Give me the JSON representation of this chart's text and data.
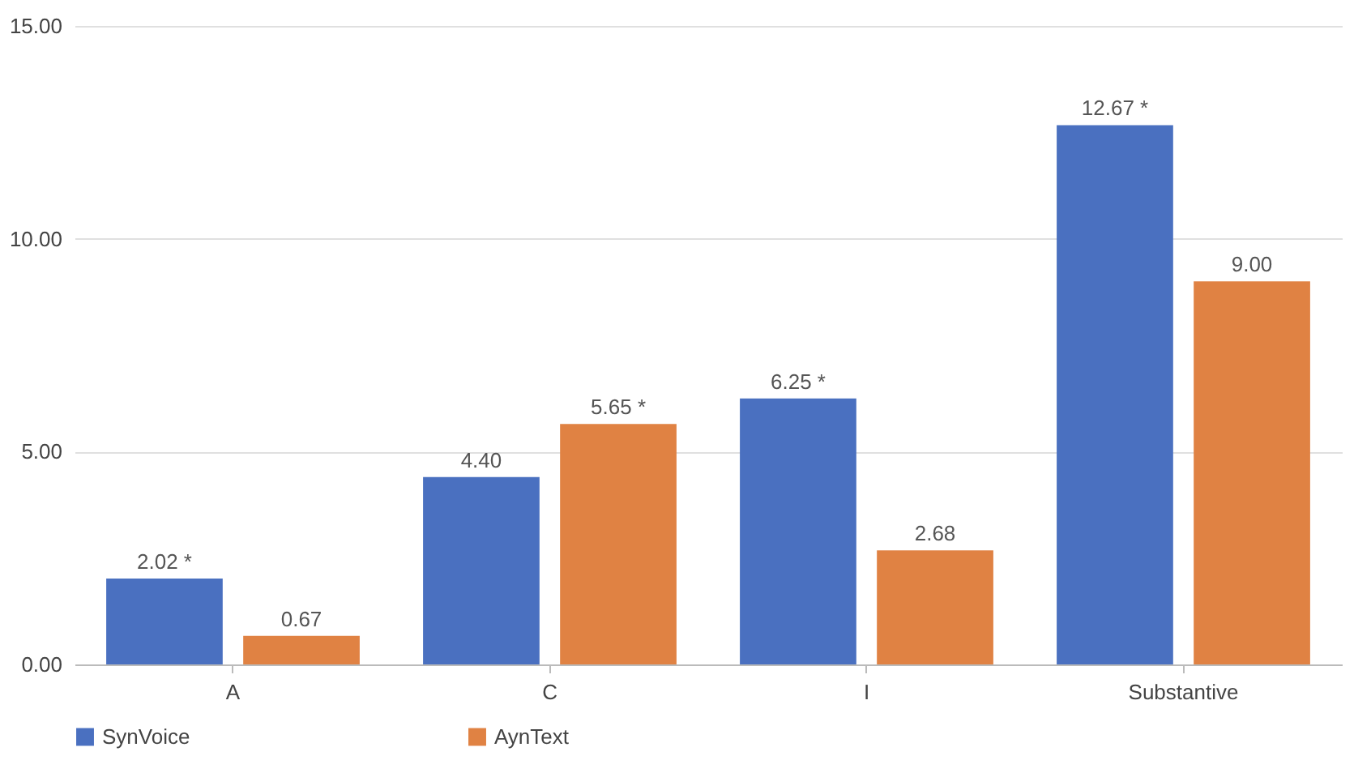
{
  "chart_data": {
    "type": "bar",
    "categories": [
      "A",
      "C",
      "I",
      "Substantive"
    ],
    "series": [
      {
        "name": "SynVoice",
        "color": "#4a70c0",
        "values": [
          2.02,
          4.4,
          6.25,
          12.67
        ],
        "value_labels": [
          "2.02 *",
          "4.40",
          "6.25 *",
          "12.67 *"
        ]
      },
      {
        "name": "AynText",
        "color": "#e08243",
        "values": [
          0.67,
          5.65,
          2.68,
          9.0
        ],
        "value_labels": [
          "0.67",
          "5.65 *",
          "2.68",
          "9.00"
        ]
      }
    ],
    "ylim": [
      0,
      15
    ],
    "yticks": [
      {
        "value": 0,
        "label": "0.00"
      },
      {
        "value": 5,
        "label": "5.00"
      },
      {
        "value": 10,
        "label": "10.00"
      },
      {
        "value": 15,
        "label": "15.00"
      }
    ],
    "grid": "y",
    "legend": "bottom"
  }
}
